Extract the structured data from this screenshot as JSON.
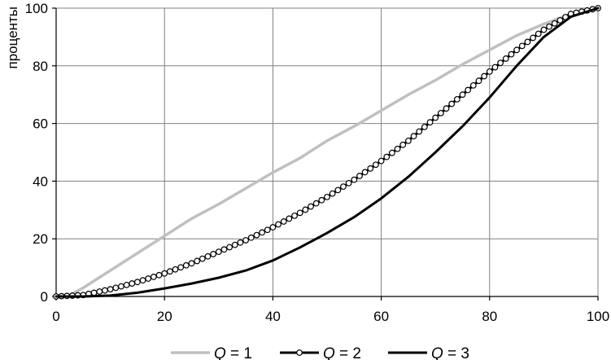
{
  "chart_data": {
    "type": "line",
    "title": "",
    "xlabel": "",
    "ylabel": "проценты",
    "xlim": [
      0,
      100
    ],
    "ylim": [
      0,
      100
    ],
    "xticks": [
      0,
      20,
      40,
      60,
      80,
      100
    ],
    "yticks": [
      0,
      20,
      40,
      60,
      80,
      100
    ],
    "grid": true,
    "legend_position": "bottom",
    "series": [
      {
        "name_var": "Q",
        "name_rest": " = 1",
        "color": "#c0c0c0",
        "marker": "none",
        "x": [
          0,
          2,
          5,
          10,
          15,
          20,
          25,
          30,
          35,
          40,
          45,
          50,
          55,
          60,
          65,
          70,
          75,
          80,
          85,
          90,
          95,
          98,
          100
        ],
        "y": [
          0,
          0,
          3,
          9,
          15,
          21,
          27,
          32,
          37.5,
          43,
          48,
          54,
          59,
          64.5,
          70,
          75,
          80.5,
          85.5,
          90.5,
          94.5,
          98,
          99.5,
          100
        ]
      },
      {
        "name_var": "Q",
        "name_rest": " = 2",
        "color": "#000000",
        "marker": "circle",
        "x": [
          0,
          5,
          10,
          15,
          20,
          25,
          30,
          35,
          40,
          45,
          50,
          55,
          60,
          65,
          70,
          75,
          80,
          85,
          90,
          95,
          100
        ],
        "y": [
          0,
          0.5,
          2.5,
          5,
          8,
          11.5,
          15.5,
          19.5,
          24,
          29,
          34.5,
          40.5,
          47,
          54,
          62,
          70,
          78,
          85.5,
          92.5,
          98,
          100
        ]
      },
      {
        "name_var": "Q",
        "name_rest": " = 3",
        "color": "#000000",
        "marker": "none",
        "x": [
          0,
          5,
          10,
          15,
          20,
          25,
          30,
          35,
          40,
          45,
          50,
          55,
          60,
          65,
          70,
          75,
          80,
          85,
          90,
          95,
          100
        ],
        "y": [
          0,
          0,
          0.3,
          1.3,
          2.8,
          4.5,
          6.5,
          9,
          12.5,
          17,
          22,
          27.5,
          34,
          41.5,
          50,
          59,
          69,
          80,
          90,
          97,
          100
        ]
      }
    ]
  }
}
